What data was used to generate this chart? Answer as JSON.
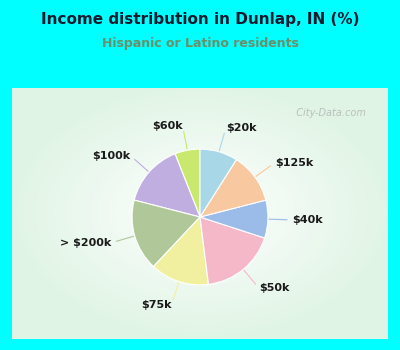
{
  "title": "Income distribution in Dunlap, IN (%)",
  "subtitle": "Hispanic or Latino residents",
  "title_color": "#1a1a2e",
  "subtitle_color": "#6b8e6b",
  "bg_cyan": "#00ffff",
  "bg_chart": "#e8f5ee",
  "watermark": "City-Data.com",
  "labels": [
    "$60k",
    "$100k",
    "> $200k",
    "$75k",
    "$50k",
    "$40k",
    "$125k",
    "$20k"
  ],
  "values": [
    6,
    15,
    17,
    14,
    18,
    9,
    12,
    9
  ],
  "colors": [
    "#c8e86e",
    "#c0aee0",
    "#b0c899",
    "#f0f0a0",
    "#f5b8c8",
    "#9bbce8",
    "#f8c8a0",
    "#a8d8e8"
  ],
  "startangle": 90,
  "label_fontsize": 8.0
}
